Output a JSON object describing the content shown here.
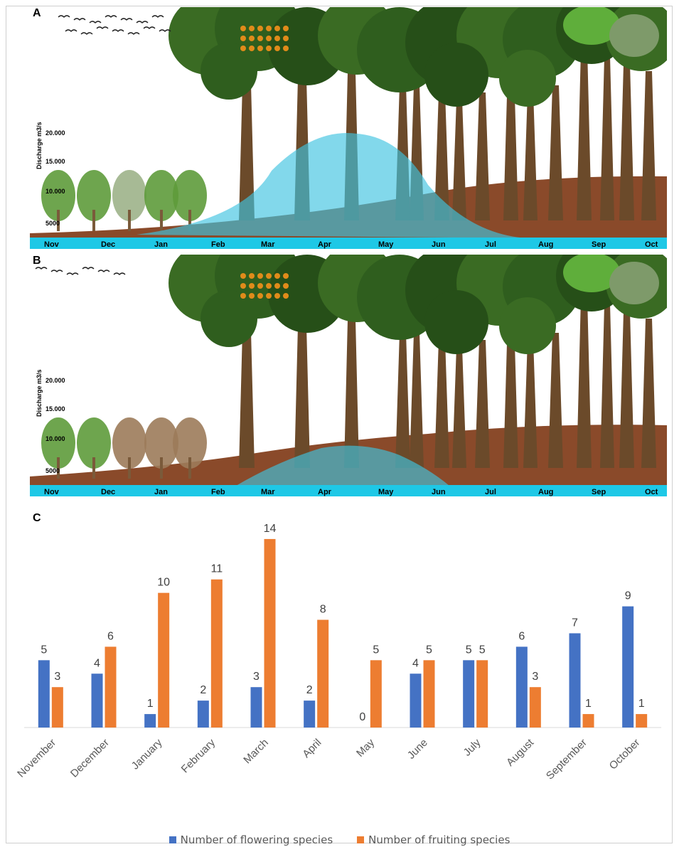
{
  "panels": {
    "a": {
      "letter": "A",
      "discharge_label": "Discharge m3/s",
      "discharge_ticks": [
        "20.000",
        "15.000",
        "10.000",
        "5000"
      ],
      "months": [
        "Nov",
        "Dec",
        "Jan",
        "Feb",
        "Mar",
        "Apr",
        "May",
        "Jun",
        "Jul",
        "Aug",
        "Sep",
        "Oct"
      ]
    },
    "b": {
      "letter": "B",
      "discharge_label": "Discharge m3/s",
      "discharge_ticks": [
        "20.000",
        "15.000",
        "10.000",
        "5000"
      ],
      "months": [
        "Nov",
        "Dec",
        "Jan",
        "Feb",
        "Mar",
        "Apr",
        "May",
        "Jun",
        "Jul",
        "Aug",
        "Sep",
        "Oct"
      ]
    },
    "c": {
      "letter": "C"
    }
  },
  "colors": {
    "flowering": "#4472C4",
    "fruiting": "#ED7D31",
    "water": "#3FC3E0",
    "month_band": "#1EC8E6",
    "soil": "#8A4A2A",
    "canopy": "#2F5E1E",
    "trunk": "#6B4A2A"
  },
  "chart_data": {
    "type": "bar",
    "categories": [
      "November",
      "December",
      "January",
      "February",
      "March",
      "April",
      "May",
      "June",
      "July",
      "August",
      "September",
      "October"
    ],
    "series": [
      {
        "name": "Number of flowering species",
        "values": [
          5,
          4,
          1,
          2,
          3,
          2,
          0,
          4,
          5,
          6,
          7,
          9
        ]
      },
      {
        "name": "Number of fruiting species",
        "values": [
          3,
          6,
          10,
          11,
          14,
          8,
          5,
          5,
          5,
          3,
          1,
          1
        ]
      }
    ],
    "ylim": [
      0,
      15
    ],
    "legend_position": "bottom",
    "grid": false
  },
  "legend": {
    "flowering": "Number of flowering species",
    "fruiting": "Number of fruiting species"
  }
}
